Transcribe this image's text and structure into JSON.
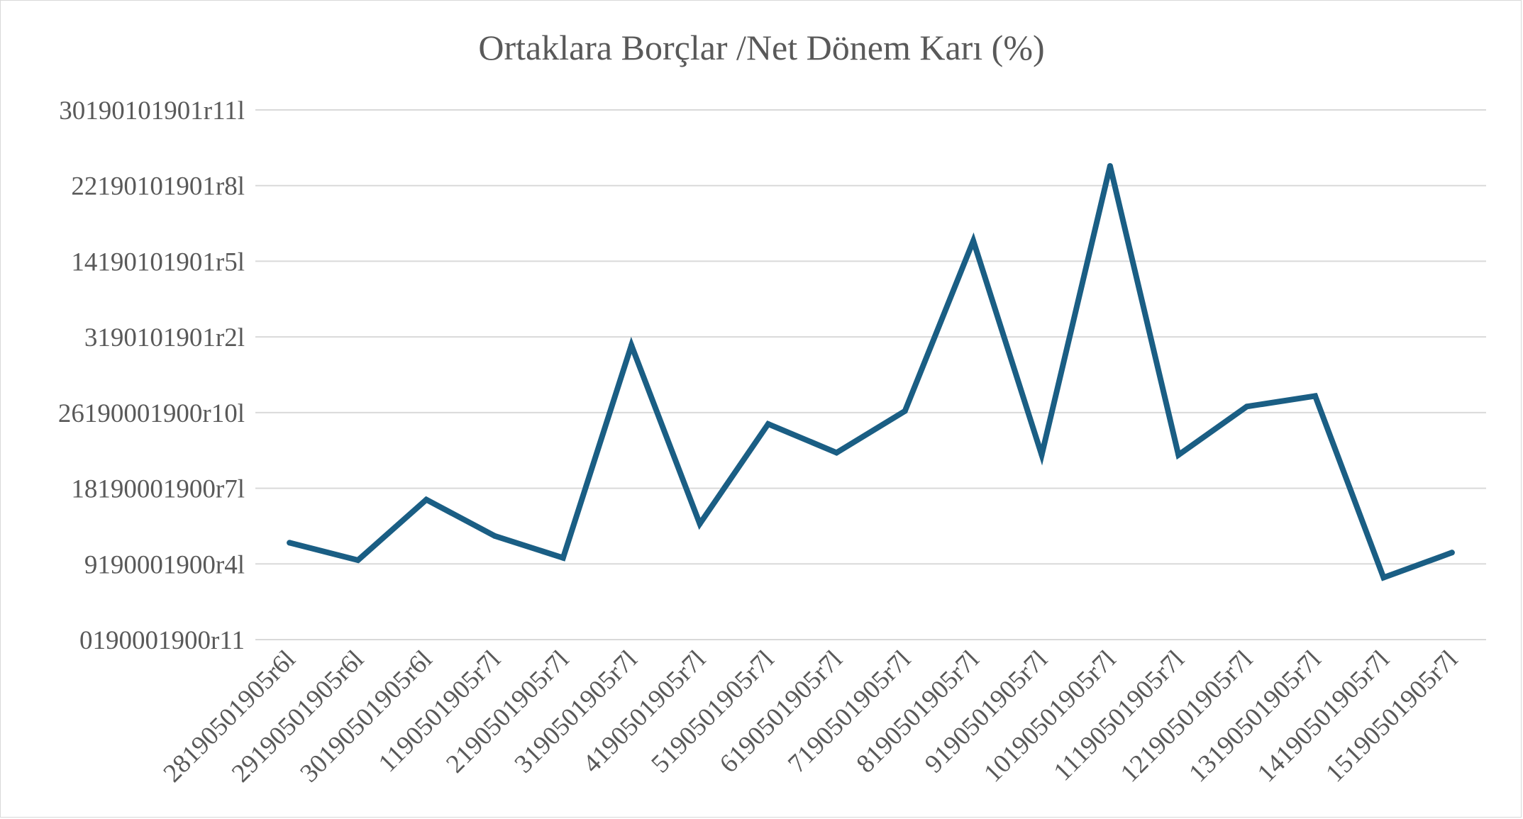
{
  "chart_data": {
    "type": "line",
    "title": "Ortaklara Borçlar /Net Dönem Karı (%)",
    "xlabel": "",
    "ylabel": "",
    "y_tick_labels": [
      "0190001900r11",
      "9190001900r4l",
      "18190001900r7l",
      "26190001900r10l",
      "3190101901r2l",
      "14190101901r5l",
      "22190101901r8l",
      "30190101901r11l"
    ],
    "ylim": [
      0,
      7
    ],
    "grid": true,
    "legend": "none",
    "color": "#1a5e84",
    "categories": [
      "28190501905r6l",
      "29190501905r6l",
      "30190501905r6l",
      "1190501905r7l",
      "2190501905r7l",
      "3190501905r7l",
      "4190501905r7l",
      "5190501905r7l",
      "6190501905r7l",
      "7190501905r7l",
      "8190501905r7l",
      "9190501905r7l",
      "10190501905r7l",
      "11190501905r7l",
      "12190501905r7l",
      "13190501905r7l",
      "14190501905r7l",
      "15190501905r7l"
    ],
    "series": [
      {
        "values": [
          1.28,
          1.05,
          1.85,
          1.37,
          1.08,
          3.89,
          1.53,
          2.85,
          2.47,
          3.02,
          5.27,
          2.44,
          6.26,
          2.44,
          3.08,
          3.22,
          0.82,
          1.15
        ]
      }
    ]
  }
}
